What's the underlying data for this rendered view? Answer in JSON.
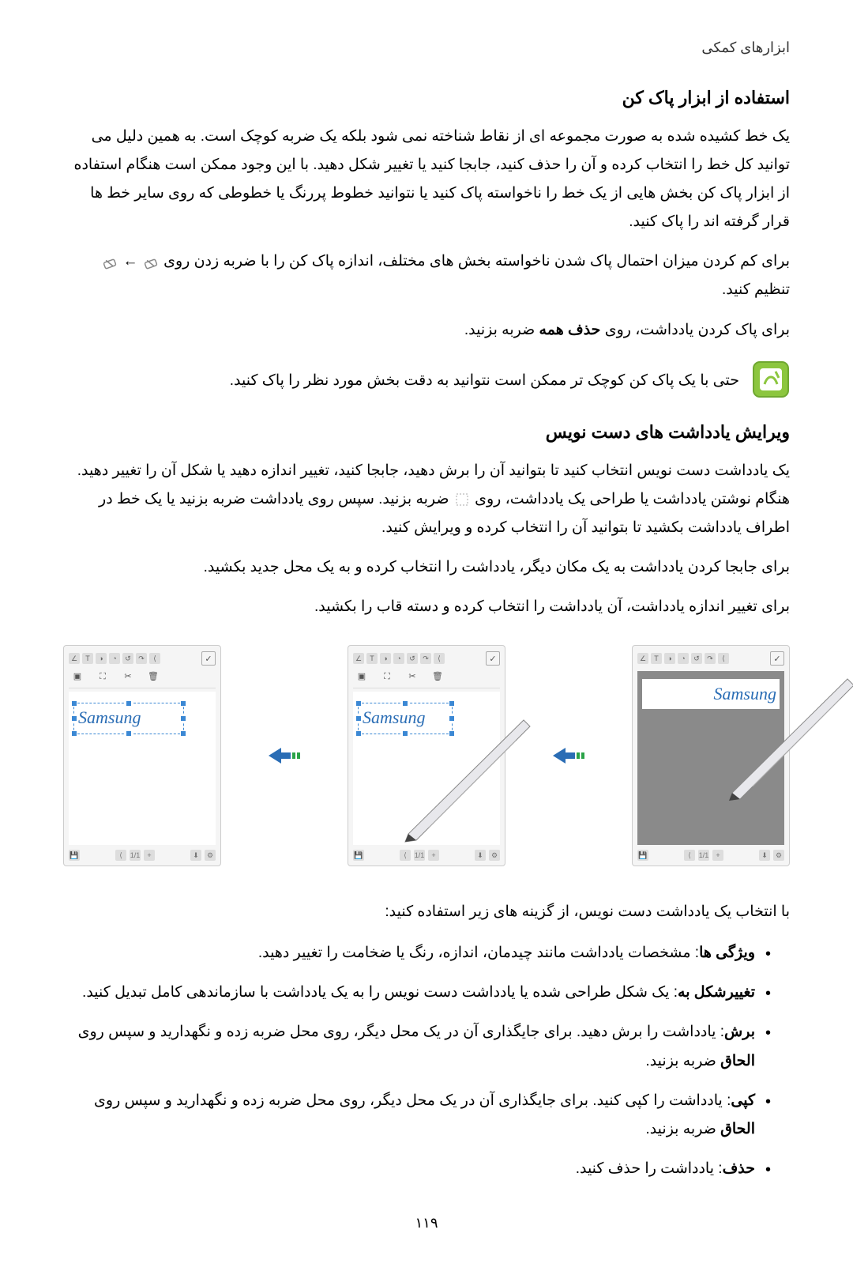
{
  "header": {
    "section_title": "ابزارهای کمکی"
  },
  "eraser_section": {
    "title": "استفاده از ابزار پاک کن",
    "p1": "یک خط کشیده شده به صورت مجموعه ای از نقاط شناخته نمی شود بلکه یک ضربه کوچک است. به همین دلیل می توانید کل خط را انتخاب کرده و آن را حذف کنید، جابجا کنید یا تغییر شکل دهید. با این وجود ممکن است هنگام استفاده از ابزار پاک کن بخش هایی از یک خط را ناخواسته پاک کنید یا نتوانید خطوط پررنگ یا خطوطی که روی سایر خط ها قرار گرفته اند را پاک کنید.",
    "p2_a": "برای کم کردن میزان احتمال پاک شدن ناخواسته بخش های مختلف، اندازه پاک کن را با ضربه زدن روی ",
    "p2_arrow": " ← ",
    "p2_b": "تنظیم کنید.",
    "p3_a": "برای پاک کردن یادداشت، روی ",
    "p3_bold": "حذف همه",
    "p3_b": " ضربه بزنید.",
    "note": "حتی با یک پاک کن کوچک تر ممکن است نتوانید به دقت بخش مورد نظر را پاک کنید."
  },
  "edit_section": {
    "title": "ویرایش یادداشت های دست نویس",
    "p1_a": "یک یادداشت دست نویس انتخاب کنید تا بتوانید آن را برش دهید، جابجا کنید، تغییر اندازه دهید یا شکل آن را تغییر دهید. هنگام نوشتن یادداشت یا طراحی یک یادداشت، روی ",
    "p1_b": " ضربه بزنید. سپس روی یادداشت ضربه بزنید یا یک خط در اطراف یادداشت بکشید تا بتوانید آن را انتخاب کرده و ویرایش کنید.",
    "p2": "برای جابجا کردن یادداشت به یک مکان دیگر، یادداشت را انتخاب کرده و به یک محل جدید بکشید.",
    "p3": "برای تغییر اندازه یادداشت، آن یادداشت را انتخاب کرده و دسته قاب را بکشید."
  },
  "figure": {
    "handwriting": "Samsung",
    "toolbar_icons": [
      "∠",
      "T",
      "◑",
      "◔",
      "↺",
      "↷",
      "⟨"
    ],
    "check": "✓",
    "sec_icons": [
      {
        "glyph": "▣",
        "label": ""
      },
      {
        "glyph": "⛶",
        "label": ""
      },
      {
        "glyph": "✂",
        "label": ""
      },
      {
        "glyph": "🗑",
        "label": ""
      }
    ],
    "page_indicator": "1/1",
    "bottom_mini": [
      "⟨",
      "1/1",
      "+",
      "⬇",
      "⚙"
    ]
  },
  "options_intro": "با انتخاب یک یادداشت دست نویس، از گزینه های زیر استفاده کنید:",
  "options": [
    {
      "bold": "ویژگی ها",
      "text": ": مشخصات یادداشت مانند چیدمان، اندازه، رنگ یا ضخامت را تغییر دهید."
    },
    {
      "bold": "تغییرشکل به",
      "text": ": یک شکل طراحی شده یا یادداشت دست نویس را به یک یادداشت با سازماندهی کامل تبدیل کنید."
    },
    {
      "bold": "برش",
      "text": ": یادداشت را برش دهید. برای جایگذاری آن در یک محل دیگر، روی محل ضربه زده و نگهدارید و سپس روی ",
      "bold2": "الحاق",
      "text2": " ضربه بزنید."
    },
    {
      "bold": "کپی",
      "text": ": یادداشت را کپی کنید. برای جایگذاری آن در یک محل دیگر، روی محل ضربه زده و نگهدارید و سپس روی ",
      "bold2": "الحاق",
      "text2": " ضربه بزنید."
    },
    {
      "bold": "حذف",
      "text": ": یادداشت را حذف کنید."
    }
  ],
  "page_number": "١١٩",
  "colors": {
    "pen_blue": "#2a6db5",
    "selection": "#3b88d4",
    "arrow_fill": "#2a6db5",
    "arrow_bars": "#2aa348"
  }
}
